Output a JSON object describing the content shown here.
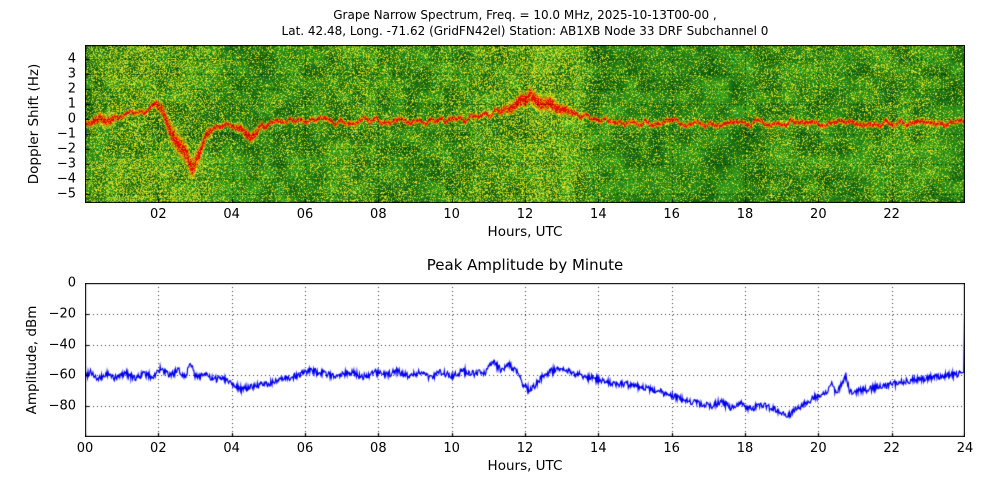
{
  "colors": {
    "background": "#ffffff",
    "axis": "#000000",
    "line_blue": "#0000ee",
    "spec_green_dark": "#0e5f10",
    "spec_green": "#36a11e",
    "spec_yellow": "#f2ee2a",
    "carrier_red": "#e01000",
    "carrier_orange": "#ff7b00"
  },
  "chart_data": [
    {
      "type": "heatmap",
      "title": "Grape Narrow Spectrum, Freq. = 10.0 MHz, 2025-10-13T00-00 ,",
      "subtitle": "Lat.  42.48, Long. -71.62 (GridFN42el) Station: AB1XB Node 33 DRF Subchannel 0",
      "xlabel": "Hours, UTC",
      "ylabel": "Doppler Shift (Hz)",
      "xlim": [
        0,
        24
      ],
      "ylim": [
        -5.6,
        4.9
      ],
      "xticks": [
        2,
        4,
        6,
        8,
        10,
        12,
        14,
        16,
        18,
        20,
        22
      ],
      "xtick_labels": [
        "02",
        "04",
        "06",
        "08",
        "10",
        "12",
        "14",
        "16",
        "18",
        "20",
        "22"
      ],
      "yticks": [
        4,
        3,
        2,
        1,
        0,
        -1,
        -2,
        -3,
        -4,
        -5
      ],
      "ytick_labels": [
        "4",
        "3",
        "2",
        "1",
        "0",
        "−1",
        "−2",
        "−3",
        "−4",
        "−5"
      ],
      "colormap_note": "green noise background with yellow speckle, red-orange Doppler carrier trace near 0 Hz",
      "carrier_trace_hz": [
        [
          0,
          -0.35
        ],
        [
          0.4,
          -0.15
        ],
        [
          0.8,
          0.1
        ],
        [
          1.2,
          0.3
        ],
        [
          1.6,
          0.6
        ],
        [
          1.9,
          0.9
        ],
        [
          2.1,
          0.4
        ],
        [
          2.3,
          -0.6
        ],
        [
          2.55,
          -1.6
        ],
        [
          2.8,
          -2.6
        ],
        [
          2.95,
          -3.3
        ],
        [
          3.1,
          -2.2
        ],
        [
          3.3,
          -1.0
        ],
        [
          3.6,
          -0.5
        ],
        [
          3.9,
          -0.35
        ],
        [
          4.2,
          -0.7
        ],
        [
          4.5,
          -1.1
        ],
        [
          4.8,
          -0.5
        ],
        [
          5.2,
          -0.25
        ],
        [
          6.0,
          -0.1
        ],
        [
          7.0,
          -0.15
        ],
        [
          8.0,
          -0.1
        ],
        [
          9.0,
          -0.2
        ],
        [
          10.0,
          -0.1
        ],
        [
          10.6,
          0.1
        ],
        [
          11.0,
          0.3
        ],
        [
          11.4,
          0.7
        ],
        [
          11.8,
          1.1
        ],
        [
          12.1,
          1.5
        ],
        [
          12.4,
          1.2
        ],
        [
          12.8,
          0.8
        ],
        [
          13.2,
          0.5
        ],
        [
          13.6,
          0.2
        ],
        [
          14.0,
          -0.1
        ],
        [
          15.0,
          -0.25
        ],
        [
          16.0,
          -0.2
        ],
        [
          17.0,
          -0.3
        ],
        [
          18.0,
          -0.25
        ],
        [
          19.0,
          -0.2
        ],
        [
          20.0,
          -0.3
        ],
        [
          21.0,
          -0.25
        ],
        [
          22.0,
          -0.3
        ],
        [
          23.0,
          -0.25
        ],
        [
          24.0,
          -0.3
        ]
      ],
      "spread_regions": [
        [
          0.0,
          0.9,
          2.0
        ],
        [
          1.8,
          3.5,
          5.5
        ],
        [
          4.0,
          5.0,
          2.0
        ],
        [
          11.2,
          13.4,
          3.5
        ]
      ],
      "bright_regions": [
        [
          0,
          1.8
        ],
        [
          10.6,
          13.6
        ]
      ],
      "dark_region": [
        13.8,
        24
      ]
    },
    {
      "type": "line",
      "title": "Peak Amplitude by Minute",
      "xlabel": "Hours, UTC",
      "ylabel": "Amplitude, dBm",
      "xlim": [
        0,
        24
      ],
      "ylim": [
        -100,
        0
      ],
      "xticks": [
        0,
        2,
        4,
        6,
        8,
        10,
        12,
        14,
        16,
        18,
        20,
        22,
        24
      ],
      "xtick_labels": [
        "00",
        "02",
        "04",
        "06",
        "08",
        "10",
        "12",
        "14",
        "16",
        "18",
        "20",
        "22",
        "24"
      ],
      "yticks": [
        0,
        -20,
        -40,
        -60,
        -80
      ],
      "ytick_labels": [
        "0",
        "−20",
        "−40",
        "−60",
        "−80"
      ],
      "grid": "dotted",
      "legend": "none",
      "series": [
        {
          "name": "peak_amplitude_dbm",
          "points": [
            [
              0.0,
              -61
            ],
            [
              0.15,
              -57
            ],
            [
              0.35,
              -63
            ],
            [
              0.6,
              -59
            ],
            [
              0.85,
              -62
            ],
            [
              1.1,
              -58
            ],
            [
              1.35,
              -62
            ],
            [
              1.6,
              -59
            ],
            [
              1.85,
              -61
            ],
            [
              2.05,
              -56
            ],
            [
              2.3,
              -60
            ],
            [
              2.55,
              -57
            ],
            [
              2.75,
              -61
            ],
            [
              2.87,
              -50
            ],
            [
              3.0,
              -61
            ],
            [
              3.25,
              -59
            ],
            [
              3.5,
              -63
            ],
            [
              3.75,
              -61
            ],
            [
              4.0,
              -65
            ],
            [
              4.3,
              -69
            ],
            [
              4.6,
              -67
            ],
            [
              4.9,
              -66
            ],
            [
              5.2,
              -64
            ],
            [
              5.5,
              -62
            ],
            [
              5.8,
              -60
            ],
            [
              6.1,
              -57
            ],
            [
              6.4,
              -58
            ],
            [
              6.7,
              -60
            ],
            [
              7.0,
              -59
            ],
            [
              7.3,
              -58
            ],
            [
              7.6,
              -61
            ],
            [
              7.9,
              -58
            ],
            [
              8.2,
              -60
            ],
            [
              8.5,
              -57
            ],
            [
              8.8,
              -60
            ],
            [
              9.1,
              -58
            ],
            [
              9.4,
              -61
            ],
            [
              9.7,
              -58
            ],
            [
              10.0,
              -60
            ],
            [
              10.3,
              -57
            ],
            [
              10.6,
              -59
            ],
            [
              10.9,
              -58
            ],
            [
              11.15,
              -51
            ],
            [
              11.35,
              -57
            ],
            [
              11.55,
              -53
            ],
            [
              11.75,
              -57
            ],
            [
              11.95,
              -66
            ],
            [
              12.15,
              -70
            ],
            [
              12.35,
              -64
            ],
            [
              12.55,
              -59
            ],
            [
              12.75,
              -57
            ],
            [
              12.95,
              -55
            ],
            [
              13.15,
              -57
            ],
            [
              13.4,
              -59
            ],
            [
              13.7,
              -61
            ],
            [
              14.0,
              -63
            ],
            [
              14.4,
              -65
            ],
            [
              14.8,
              -66
            ],
            [
              15.2,
              -68
            ],
            [
              15.6,
              -70
            ],
            [
              16.0,
              -73
            ],
            [
              16.4,
              -76
            ],
            [
              16.8,
              -79
            ],
            [
              17.1,
              -80
            ],
            [
              17.35,
              -77
            ],
            [
              17.6,
              -81
            ],
            [
              17.9,
              -78
            ],
            [
              18.15,
              -82
            ],
            [
              18.4,
              -79
            ],
            [
              18.7,
              -81
            ],
            [
              19.0,
              -84
            ],
            [
              19.2,
              -86
            ],
            [
              19.45,
              -81
            ],
            [
              19.7,
              -77
            ],
            [
              19.95,
              -74
            ],
            [
              20.2,
              -72
            ],
            [
              20.35,
              -65
            ],
            [
              20.5,
              -72
            ],
            [
              20.75,
              -60
            ],
            [
              20.85,
              -71
            ],
            [
              21.1,
              -70
            ],
            [
              21.4,
              -69
            ],
            [
              21.7,
              -67
            ],
            [
              22.0,
              -66
            ],
            [
              22.3,
              -64
            ],
            [
              22.6,
              -63
            ],
            [
              22.9,
              -62
            ],
            [
              23.2,
              -61
            ],
            [
              23.5,
              -60
            ],
            [
              23.8,
              -59
            ],
            [
              23.97,
              -58
            ],
            [
              24.0,
              -1
            ]
          ]
        }
      ]
    }
  ]
}
